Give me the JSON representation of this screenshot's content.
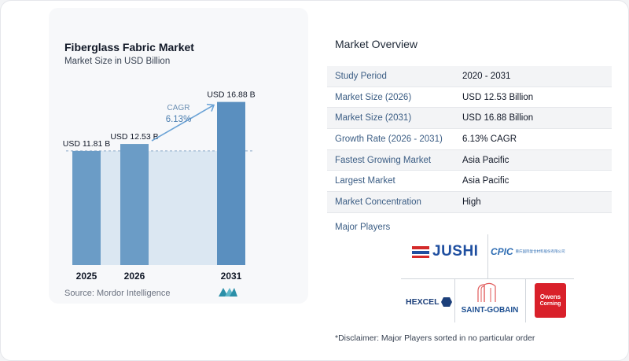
{
  "chart_data": {
    "type": "bar",
    "title": "Fiberglass Fabric Market",
    "subtitle": "Market Size in USD Billion",
    "categories": [
      "2025",
      "2026",
      "2031"
    ],
    "values": [
      11.81,
      12.53,
      16.88
    ],
    "data_labels": [
      "USD 11.81 B",
      "USD 12.53 B",
      "USD 16.88 B"
    ],
    "cagr_label": "CAGR",
    "cagr_value": "6.13%",
    "ylim": [
      0,
      17.5
    ],
    "grid": false,
    "bar_color": "#6b9cc6",
    "bar_color_highlight": "#5a8fbf",
    "area_color": "#dbe7f2",
    "arrow_color": "#6ba3d6"
  },
  "source": "Source:  Mordor Intelligence",
  "overview": {
    "title": "Market Overview",
    "rows": [
      {
        "label": "Study Period",
        "value": "2020 - 2031"
      },
      {
        "label": "Market Size (2026)",
        "value": "USD 12.53 Billion"
      },
      {
        "label": "Market Size (2031)",
        "value": "USD 16.88 Billion"
      },
      {
        "label": "Growth Rate (2026 - 2031)",
        "value": "6.13% CAGR"
      },
      {
        "label": "Fastest Growing Market",
        "value": "Asia Pacific"
      },
      {
        "label": "Largest Market",
        "value": "Asia Pacific"
      },
      {
        "label": "Market Concentration",
        "value": "High"
      }
    ]
  },
  "players": {
    "title": "Major Players",
    "logos": {
      "jushi": "JUSHI",
      "cpic": "CPIC",
      "cpic_text": "重庆国际复合材料股份有限公司",
      "hexcel": "HEXCEL",
      "saint_gobain": "SAINT-GOBAIN",
      "owens_1": "Owens",
      "owens_2": "Corning"
    }
  },
  "disclaimer": "*Disclaimer: Major Players sorted in no particular order",
  "colors": {
    "accent": "#3b5d84",
    "jushi_red": "#d42a2a",
    "jushi_blue": "#1f4fa0",
    "owens_red": "#d9202a",
    "hexcel_blue": "#1c3f7a"
  }
}
